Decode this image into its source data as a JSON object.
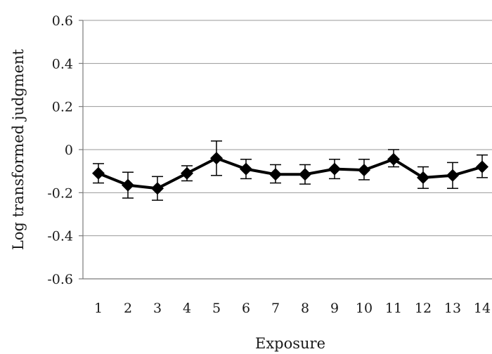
{
  "chart_data": {
    "type": "line",
    "title": "",
    "xlabel": "Exposure",
    "ylabel": "Log transformed judgment",
    "ylim": [
      -0.6,
      0.6
    ],
    "yticks": [
      "0.6",
      "0.4",
      "0.2",
      "0",
      "-0.2",
      "-0.4",
      "-0.6"
    ],
    "ytick_values": [
      0.6,
      0.4,
      0.2,
      0,
      -0.2,
      -0.4,
      -0.6
    ],
    "categories": [
      "1",
      "2",
      "3",
      "4",
      "5",
      "6",
      "7",
      "8",
      "9",
      "10",
      "11",
      "12",
      "13",
      "14"
    ],
    "grid": true,
    "legend": "none",
    "series": [
      {
        "values": [
          -0.11,
          -0.165,
          -0.18,
          -0.11,
          -0.04,
          -0.09,
          -0.115,
          -0.115,
          -0.09,
          -0.095,
          -0.045,
          -0.13,
          -0.12,
          -0.08
        ],
        "error_low": [
          -0.155,
          -0.225,
          -0.235,
          -0.145,
          -0.12,
          -0.135,
          -0.155,
          -0.16,
          -0.135,
          -0.14,
          -0.08,
          -0.18,
          -0.18,
          -0.13
        ],
        "error_high": [
          -0.065,
          -0.105,
          -0.125,
          -0.075,
          0.04,
          -0.045,
          -0.07,
          -0.07,
          -0.045,
          -0.045,
          0.0,
          -0.08,
          -0.06,
          -0.025
        ],
        "color": "#000000",
        "marker": "diamond"
      }
    ]
  }
}
